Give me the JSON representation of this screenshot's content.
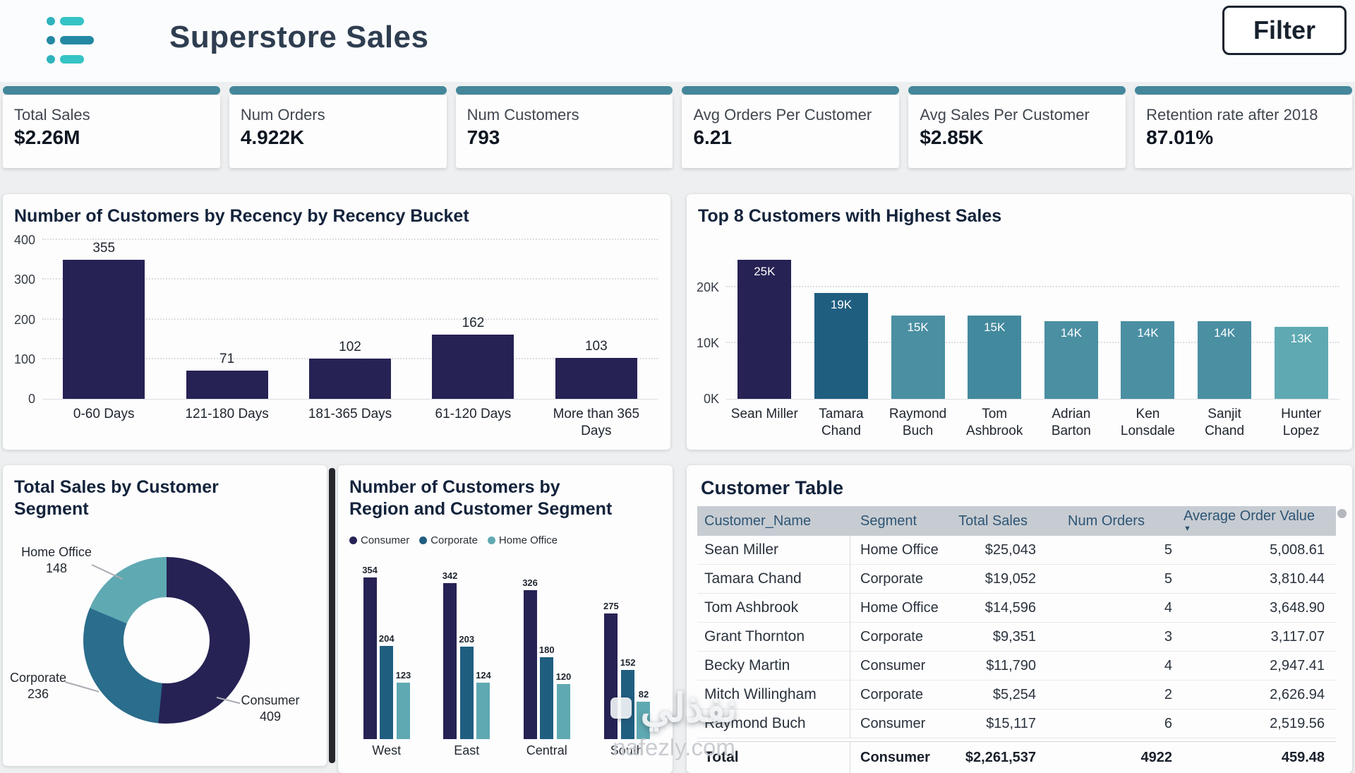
{
  "colors": {
    "accent_teal": "#44879a",
    "navy": "#262254",
    "dark_blue": "#205e80",
    "teal_light": "#5fa9b2",
    "corporate_blue": "#2b6d8c"
  },
  "header": {
    "title": "Superstore Sales",
    "filter_label": "Filter"
  },
  "kpis": [
    {
      "label": "Total Sales",
      "value": "$2.26M"
    },
    {
      "label": "Num Orders",
      "value": "4.922K"
    },
    {
      "label": "Num Customers",
      "value": "793"
    },
    {
      "label": "Avg Orders Per Customer",
      "value": "6.21"
    },
    {
      "label": "Avg Sales Per Customer",
      "value": "$2.85K"
    },
    {
      "label": "Retention rate after 2018",
      "value": "87.01%"
    }
  ],
  "chart_data": [
    {
      "id": "recency",
      "type": "bar",
      "title": "Number of Customers by Recency by Recency Bucket",
      "categories": [
        "0-60 Days",
        "121-180 Days",
        "181-365 Days",
        "61-120 Days",
        "More than 365 Days"
      ],
      "values": [
        355,
        71,
        102,
        162,
        103
      ],
      "ylim": [
        0,
        400
      ],
      "yticks": [
        0,
        100,
        200,
        300,
        400
      ],
      "bar_color": "#262254",
      "grid": true,
      "legend": "none"
    },
    {
      "id": "top8",
      "type": "bar",
      "title": "Top 8 Customers with Highest Sales",
      "categories": [
        "Sean Miller",
        "Tamara Chand",
        "Raymond Buch",
        "Tom Ashbrook",
        "Adrian Barton",
        "Ken Lonsdale",
        "Sanjit Chand",
        "Hunter Lopez"
      ],
      "values": [
        25,
        19,
        15,
        15,
        14,
        14,
        14,
        13
      ],
      "value_labels": [
        "25K",
        "19K",
        "15K",
        "15K",
        "14K",
        "14K",
        "14K",
        "13K"
      ],
      "ylim": [
        0,
        29.3
      ],
      "yticks": [
        0,
        10,
        20
      ],
      "ytick_suffix": "K",
      "bar_colors": [
        "#262254",
        "#205e80",
        "#4a8fa2",
        "#43899d",
        "#4a8fa2",
        "#4a8fa2",
        "#4a8fa2",
        "#5fa9b2"
      ],
      "grid": true,
      "legend": "none"
    },
    {
      "id": "segment-donut",
      "type": "pie",
      "title": "Total Sales by Customer Segment",
      "segments": [
        {
          "label": "Consumer",
          "value": 409,
          "color": "#262254"
        },
        {
          "label": "Corporate",
          "value": 236,
          "color": "#2b6d8c"
        },
        {
          "label": "Home Office",
          "value": 148,
          "color": "#5fa9b2"
        }
      ]
    },
    {
      "id": "region-segment",
      "type": "bar",
      "title": "Number of Customers by Region and Customer Segment",
      "categories": [
        "West",
        "East",
        "Central",
        "South"
      ],
      "series": [
        {
          "name": "Consumer",
          "color": "#262254",
          "values": [
            354,
            342,
            326,
            275
          ]
        },
        {
          "name": "Corporate",
          "color": "#205e80",
          "values": [
            204,
            203,
            180,
            152
          ]
        },
        {
          "name": "Home Office",
          "color": "#5fa9b2",
          "values": [
            123,
            124,
            120,
            82
          ]
        }
      ],
      "ymax": 370,
      "legend": "top"
    },
    {
      "id": "customer-table",
      "type": "table",
      "title": "Customer Table",
      "columns": [
        "Customer_Name",
        "Segment",
        "Total Sales",
        "Num Orders",
        "Average Order Value"
      ],
      "sort_column": "Average Order Value",
      "sort_direction": "descending",
      "rows": [
        [
          "Sean Miller",
          "Home Office",
          "$25,043",
          "5",
          "5,008.61"
        ],
        [
          "Tamara Chand",
          "Corporate",
          "$19,052",
          "5",
          "3,810.44"
        ],
        [
          "Tom Ashbrook",
          "Home Office",
          "$14,596",
          "4",
          "3,648.90"
        ],
        [
          "Grant Thornton",
          "Corporate",
          "$9,351",
          "3",
          "3,117.07"
        ],
        [
          "Becky Martin",
          "Consumer",
          "$11,790",
          "4",
          "2,947.41"
        ],
        [
          "Mitch Willingham",
          "Corporate",
          "$5,254",
          "2",
          "2,626.94"
        ],
        [
          "Raymond Buch",
          "Consumer",
          "$15,117",
          "6",
          "2,519.56"
        ]
      ],
      "total_row": [
        "Total",
        "Consumer",
        "$2,261,537",
        "4922",
        "459.48"
      ]
    }
  ],
  "watermark": {
    "logo_text": "نفذلي",
    "site": "nafezly.com"
  }
}
